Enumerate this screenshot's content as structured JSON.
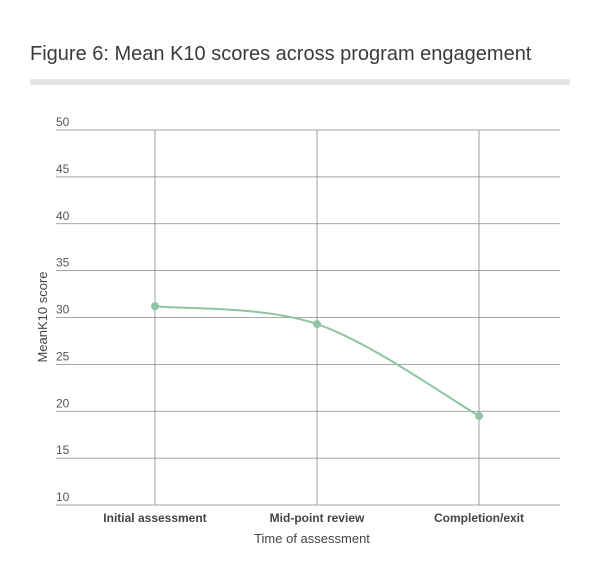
{
  "figure": {
    "title": "Figure 6: Mean K10 scores across program engagement"
  },
  "chart_data": {
    "type": "line",
    "title": "",
    "xlabel": "Time of assessment",
    "ylabel": "MeanK10 score",
    "categories": [
      "Initial assessment",
      "Mid-point review",
      "Completion/exit"
    ],
    "series": [
      {
        "values": [
          31.2,
          29.3,
          19.5
        ]
      }
    ],
    "ylim": [
      10,
      50
    ],
    "yticks": [
      10,
      15,
      20,
      25,
      30,
      35,
      40,
      45,
      50
    ],
    "grid": true,
    "smooth": true,
    "legend": "none",
    "colors": {
      "line": "#8fc4a4",
      "marker": "#8fc4a4",
      "grid": "#888888"
    }
  }
}
